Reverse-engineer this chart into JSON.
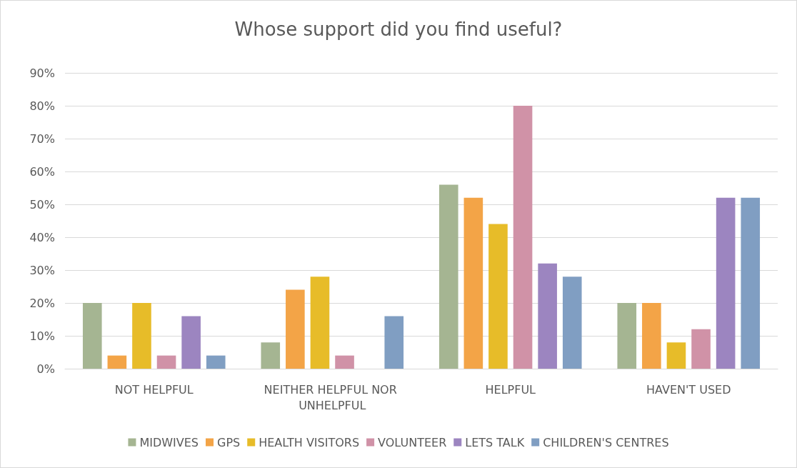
{
  "chart_data": {
    "type": "bar",
    "title": "Whose support did you find useful?",
    "categories": [
      "NOT HELPFUL",
      "NEITHER HELPFUL NOR UNHELPFUL",
      "HELPFUL",
      "HAVEN'T USED"
    ],
    "series": [
      {
        "name": "MIDWIVES",
        "color": "#a5b592",
        "values": [
          20,
          8,
          56,
          20
        ]
      },
      {
        "name": "GPS",
        "color": "#f3a447",
        "values": [
          4,
          24,
          52,
          20
        ]
      },
      {
        "name": "HEALTH VISITORS",
        "color": "#e7bc29",
        "values": [
          20,
          28,
          44,
          8
        ]
      },
      {
        "name": "VOLUNTEER",
        "color": "#d092a7",
        "values": [
          4,
          4,
          80,
          12
        ]
      },
      {
        "name": "LETS TALK",
        "color": "#9c85c0",
        "values": [
          16,
          0,
          32,
          52
        ]
      },
      {
        "name": "CHILDREN'S CENTRES",
        "color": "#809ec2",
        "values": [
          4,
          16,
          28,
          52
        ]
      }
    ],
    "ylim": [
      0,
      90
    ],
    "yticks": [
      {
        "value": 0,
        "label": "0%"
      },
      {
        "value": 10,
        "label": "10%"
      },
      {
        "value": 20,
        "label": "20%"
      },
      {
        "value": 30,
        "label": "30%"
      },
      {
        "value": 40,
        "label": "40%"
      },
      {
        "value": 50,
        "label": "50%"
      },
      {
        "value": 60,
        "label": "60%"
      },
      {
        "value": 70,
        "label": "70%"
      },
      {
        "value": 80,
        "label": "80%"
      },
      {
        "value": 90,
        "label": "90%"
      }
    ],
    "grid": "y",
    "legend": "bottom"
  }
}
